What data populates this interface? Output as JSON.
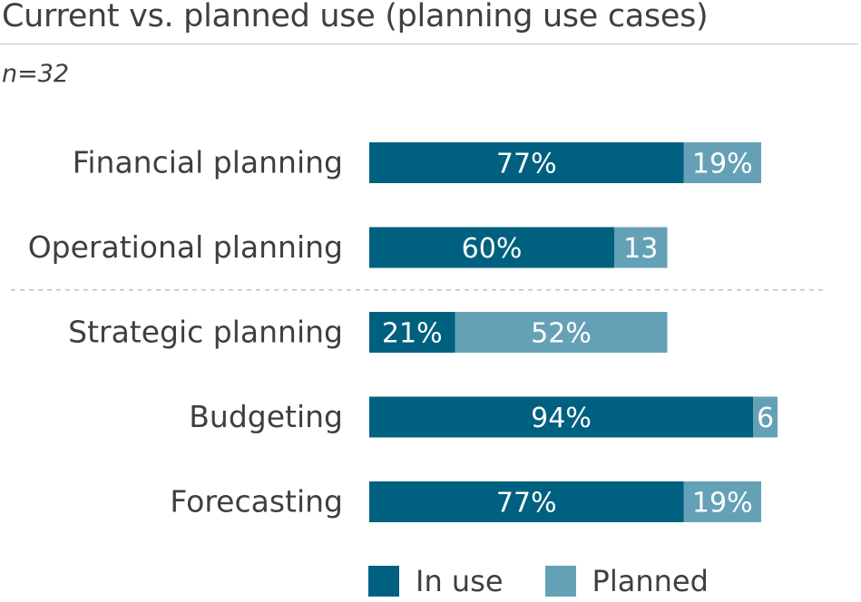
{
  "title": "Current vs. planned use (planning use cases)",
  "subtitle": "n=32",
  "colors": {
    "in_use": "#00607f",
    "planned": "#65a1b6",
    "divider": "#bfbfbf"
  },
  "chart_data": {
    "type": "bar",
    "orientation": "horizontal",
    "stacked": true,
    "categories": [
      "Financial planning",
      "Operational planning",
      "Strategic planning",
      "Budgeting",
      "Forecasting"
    ],
    "series": [
      {
        "name": "In use",
        "values": [
          77,
          60,
          21,
          94,
          77
        ],
        "labels": [
          "77%",
          "60%",
          "21%",
          "94%",
          "77%"
        ]
      },
      {
        "name": "Planned",
        "values": [
          19,
          13,
          52,
          6,
          19
        ],
        "labels": [
          "19%",
          "13",
          "52%",
          "6",
          "19%"
        ]
      }
    ],
    "xlim": [
      0,
      100
    ],
    "legend_position": "bottom",
    "group_divider_after_index": 1
  },
  "legend": {
    "in_use": "In use",
    "planned": "Planned"
  }
}
